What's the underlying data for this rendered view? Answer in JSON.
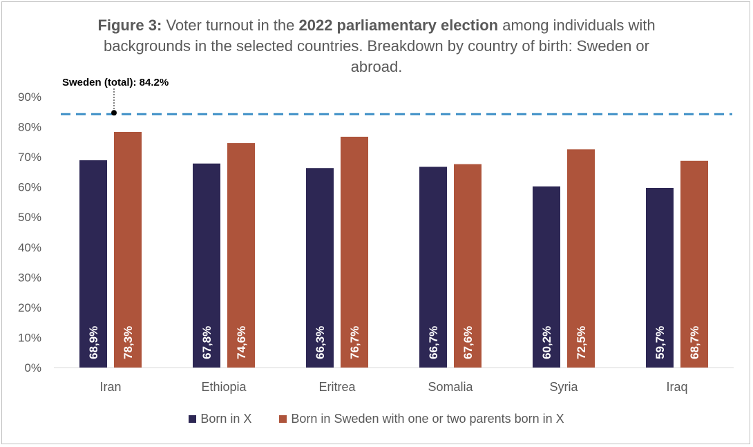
{
  "title": {
    "lead": "Figure 3:",
    "part1": "Voter turnout in the",
    "bold": "2022 parliamentary election",
    "part2": "among individuals with backgrounds in the selected countries. Breakdown by country of birth: Sweden or abroad."
  },
  "colors": {
    "born_in_x": "#2d2754",
    "born_in_sweden": "#ae543b",
    "reference": "#3d8fc6"
  },
  "chart_data": {
    "type": "bar",
    "categories": [
      "Iran",
      "Ethiopia",
      "Eritrea",
      "Somalia",
      "Syria",
      "Iraq"
    ],
    "series": [
      {
        "name": "Born in X",
        "values": [
          68.9,
          67.8,
          66.3,
          66.7,
          60.2,
          59.7
        ],
        "labels": [
          "68,9%",
          "67,8%",
          "66,3%",
          "66,7%",
          "60,2%",
          "59,7%"
        ]
      },
      {
        "name": "Born in Sweden with one or two parents born in X",
        "values": [
          78.3,
          74.6,
          76.7,
          67.6,
          72.5,
          68.7
        ],
        "labels": [
          "78,3%",
          "74,6%",
          "76,7%",
          "67,6%",
          "72,5%",
          "68,7%"
        ]
      }
    ],
    "reference_line": {
      "label": "Sweden (total): 84.2%",
      "value": 84.2
    },
    "ylim": [
      0,
      90
    ],
    "yticks": [
      "0%",
      "10%",
      "20%",
      "30%",
      "40%",
      "50%",
      "60%",
      "70%",
      "80%",
      "90%"
    ],
    "legend_position": "bottom"
  }
}
